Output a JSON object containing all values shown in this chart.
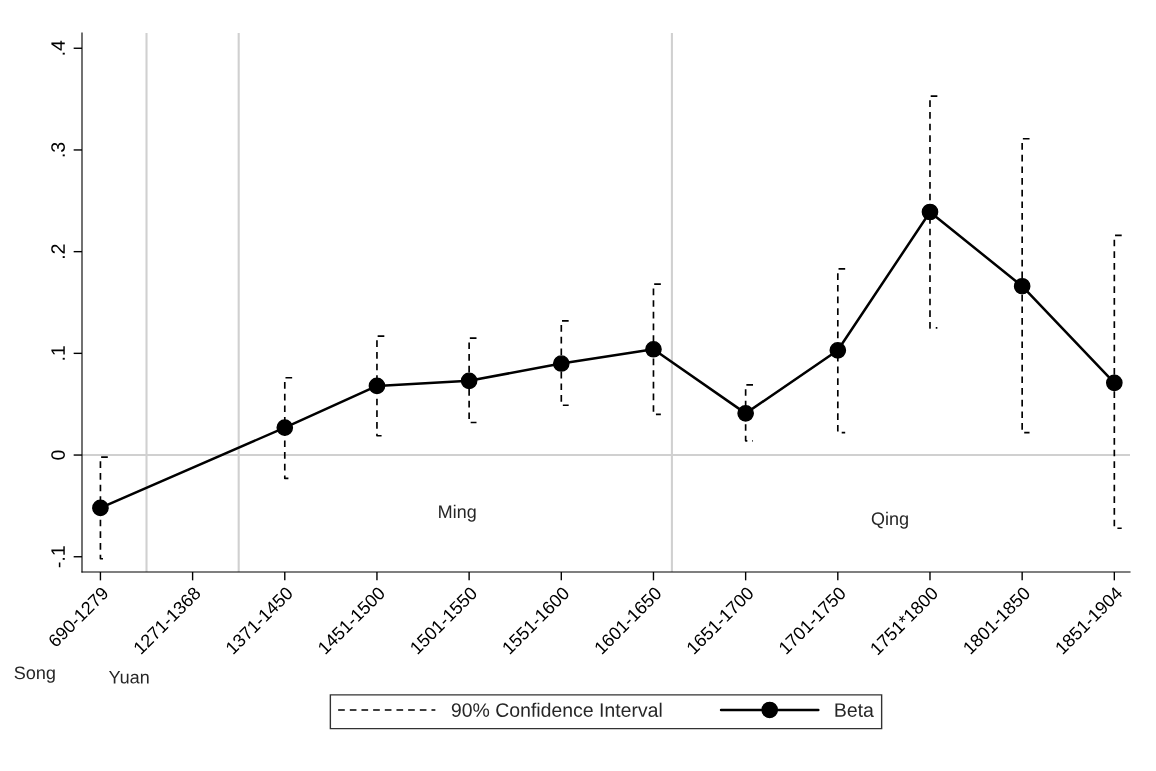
{
  "chart_data": {
    "type": "line",
    "categories": [
      "690-1279",
      "1271-1368",
      "1371-1450",
      "1451-1500",
      "1501-1550",
      "1551-1600",
      "1601-1650",
      "1651-1700",
      "1701-1750",
      "1751*1800",
      "1801-1850",
      "1851-1904"
    ],
    "series": [
      {
        "name": "Beta",
        "color": "#000000",
        "line_style": "solid",
        "values": [
          -0.052,
          null,
          0.027,
          0.068,
          0.073,
          0.09,
          0.104,
          0.041,
          0.103,
          0.239,
          0.166,
          0.071
        ],
        "errors": [
          [
            -0.102,
            -0.002
          ],
          null,
          [
            -0.023,
            0.076
          ],
          [
            0.019,
            0.117
          ],
          [
            0.032,
            0.115
          ],
          [
            0.049,
            0.132
          ],
          [
            0.04,
            0.168
          ],
          [
            0.014,
            0.069
          ],
          [
            0.022,
            0.183
          ],
          [
            0.125,
            0.353
          ],
          [
            0.022,
            0.311
          ],
          [
            -0.072,
            0.216
          ]
        ]
      }
    ],
    "ylim": [
      -0.115,
      0.415
    ],
    "yticks": [
      {
        "value": -0.1,
        "label": "-.1"
      },
      {
        "value": 0,
        "label": "0"
      },
      {
        "value": 0.1,
        "label": ".1"
      },
      {
        "value": 0.2,
        "label": ".2"
      },
      {
        "value": 0.3,
        "label": ".3"
      },
      {
        "value": 0.4,
        "label": ".4"
      }
    ],
    "ref_lines": [
      {
        "axis": "y",
        "value": 0,
        "color": "#d0d0d0"
      }
    ],
    "annotations": [
      "Ming",
      "Qing",
      "Song",
      "Yuan",
      "90% Confidence Interval"
    ],
    "marker": "circle",
    "grid": false,
    "legend": "bottom"
  }
}
